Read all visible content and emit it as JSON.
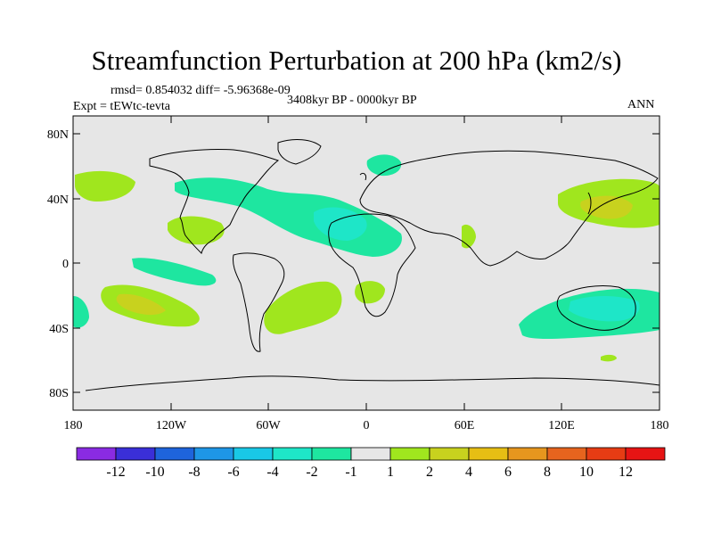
{
  "title": "Streamfunction Perturbation at 200 hPa (km2/s)",
  "stats": "rmsd= 0.854032 diff= -5.96368e-09",
  "experiment": "Expt = tEWtc-tevta",
  "period": "3408kyr BP - 0000kyr BP",
  "season": "ANN",
  "lat_labels": [
    "80N",
    "40N",
    "0",
    "40S",
    "80S"
  ],
  "lon_labels": [
    "180",
    "120W",
    "60W",
    "0",
    "60E",
    "120E",
    "180"
  ],
  "colorbar": {
    "colors": [
      "#8a2be2",
      "#3a2fd8",
      "#1e64dc",
      "#1e96e6",
      "#19c8e6",
      "#1ee6c8",
      "#1ee6a0",
      "#e6e6e6",
      "#a0e61e",
      "#c8d21e",
      "#e6be14",
      "#e6961e",
      "#e6641e",
      "#e63c14",
      "#e61414"
    ],
    "labels": [
      "-12",
      "-10",
      "-8",
      "-6",
      "-4",
      "-2",
      "-1",
      "1",
      "2",
      "4",
      "6",
      "8",
      "10",
      "12"
    ]
  },
  "map_colors": {
    "background": "#e6e6e6",
    "coast": "#000000"
  }
}
